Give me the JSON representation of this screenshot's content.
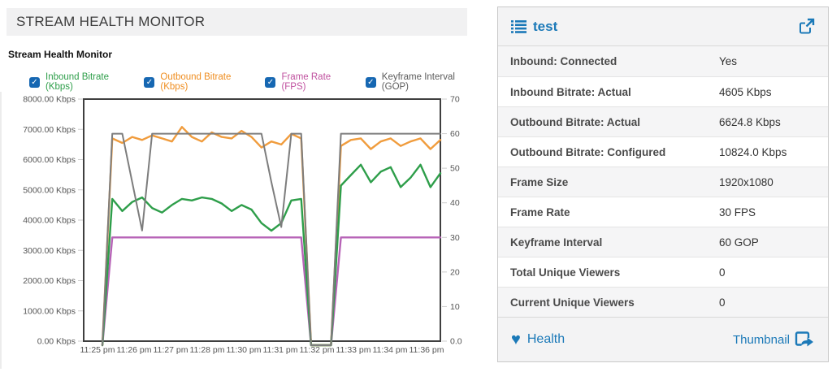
{
  "left_panel": {
    "header_title": "STREAM HEALTH MONITOR",
    "chart_title": "Stream Health Monitor",
    "checkbox_glyph": "✓"
  },
  "chart_data": {
    "type": "line",
    "title": "Stream Health Monitor",
    "x_tick_labels": [
      "11:25 pm",
      "11:26 pm",
      "11:27 pm",
      "11:28 pm",
      "11:30 pm",
      "11:31 pm",
      "11:32 pm",
      "11:33 pm",
      "11:34 pm",
      "11:36 pm"
    ],
    "y_left": {
      "labels": [
        "8000.00 Kbps",
        "7000.00 Kbps",
        "6000.00 Kbps",
        "5000.00 Kbps",
        "4000.00 Kbps",
        "3000.00 Kbps",
        "2000.00 Kbps",
        "1000.00 Kbps",
        "0.00 Kbps"
      ],
      "min": 0,
      "max": 8000,
      "unit": "Kbps"
    },
    "y_right": {
      "labels": [
        "70",
        "60",
        "50",
        "40",
        "30",
        "20",
        "10",
        "0.0"
      ],
      "min": 0,
      "max": 70
    },
    "grid": false,
    "legend_position": "top",
    "series": [
      {
        "name": "Inbound Bitrate (Kbps)",
        "axis": "kbps",
        "color": "#2e9e4a",
        "label_color": "#2e9e4a",
        "checked": true,
        "values": [
          0,
          4700,
          4300,
          4600,
          4750,
          4400,
          4250,
          4500,
          4700,
          4650,
          4750,
          4700,
          4550,
          4300,
          4500,
          4350,
          3900,
          3650,
          3900,
          4650,
          4700,
          0,
          0,
          0,
          5140,
          5490,
          5830,
          5250,
          5600,
          5750,
          5090,
          5400,
          5830,
          5090,
          5550
        ]
      },
      {
        "name": "Outbound Bitrate (Kbps)",
        "axis": "kbps",
        "color": "#f09c3d",
        "label_color": "#ef8d1f",
        "checked": true,
        "values": [
          0,
          6700,
          6550,
          6750,
          6650,
          6800,
          6700,
          6600,
          7080,
          6750,
          6600,
          6900,
          6750,
          6700,
          6950,
          6750,
          6400,
          6600,
          6500,
          6850,
          6700,
          0,
          0,
          0,
          6450,
          6650,
          6700,
          6350,
          6600,
          6700,
          6450,
          6600,
          6700,
          6350,
          6650
        ]
      },
      {
        "name": "Frame Rate (FPS)",
        "axis": "fps",
        "color": "#b763b7",
        "label_color": "#c0519f",
        "checked": true,
        "values": [
          0,
          30,
          30,
          30,
          30,
          30,
          30,
          30,
          30,
          30,
          30,
          30,
          30,
          30,
          30,
          30,
          30,
          30,
          30,
          30,
          30,
          0,
          0,
          0,
          30,
          30,
          30,
          30,
          30,
          30,
          30,
          30,
          30,
          30,
          30
        ]
      },
      {
        "name": "Keyframe Interval (GOP)",
        "axis": "fps",
        "color": "#7d7d7d",
        "label_color": "#5c5c5c",
        "checked": true,
        "values": [
          0,
          60,
          60,
          46,
          32,
          60,
          60,
          60,
          60,
          60,
          60,
          60,
          60,
          60,
          60,
          60,
          60,
          46,
          33,
          60,
          60,
          0,
          0,
          0,
          60,
          60,
          60,
          60,
          60,
          60,
          60,
          60,
          60,
          60,
          60
        ]
      }
    ]
  },
  "right_panel": {
    "title": "test",
    "rows": [
      {
        "label": "Inbound: Connected",
        "value": "Yes"
      },
      {
        "label": "Inbound Bitrate: Actual",
        "value": "4605 Kbps"
      },
      {
        "label": "Outbound Bitrate: Actual",
        "value": "6624.8 Kbps"
      },
      {
        "label": "Outbound Bitrate: Configured",
        "value": "10824.0 Kbps"
      },
      {
        "label": "Frame Size",
        "value": "1920x1080"
      },
      {
        "label": "Frame Rate",
        "value": "30 FPS"
      },
      {
        "label": "Keyframe Interval",
        "value": "60 GOP"
      },
      {
        "label": "Total Unique Viewers",
        "value": "0"
      },
      {
        "label": "Current Unique Viewers",
        "value": "0"
      }
    ],
    "footer": {
      "health_label": "Health",
      "heart_glyph": "♥",
      "thumbnail_label": "Thumbnail"
    },
    "accent_color": "#1b79b8"
  }
}
